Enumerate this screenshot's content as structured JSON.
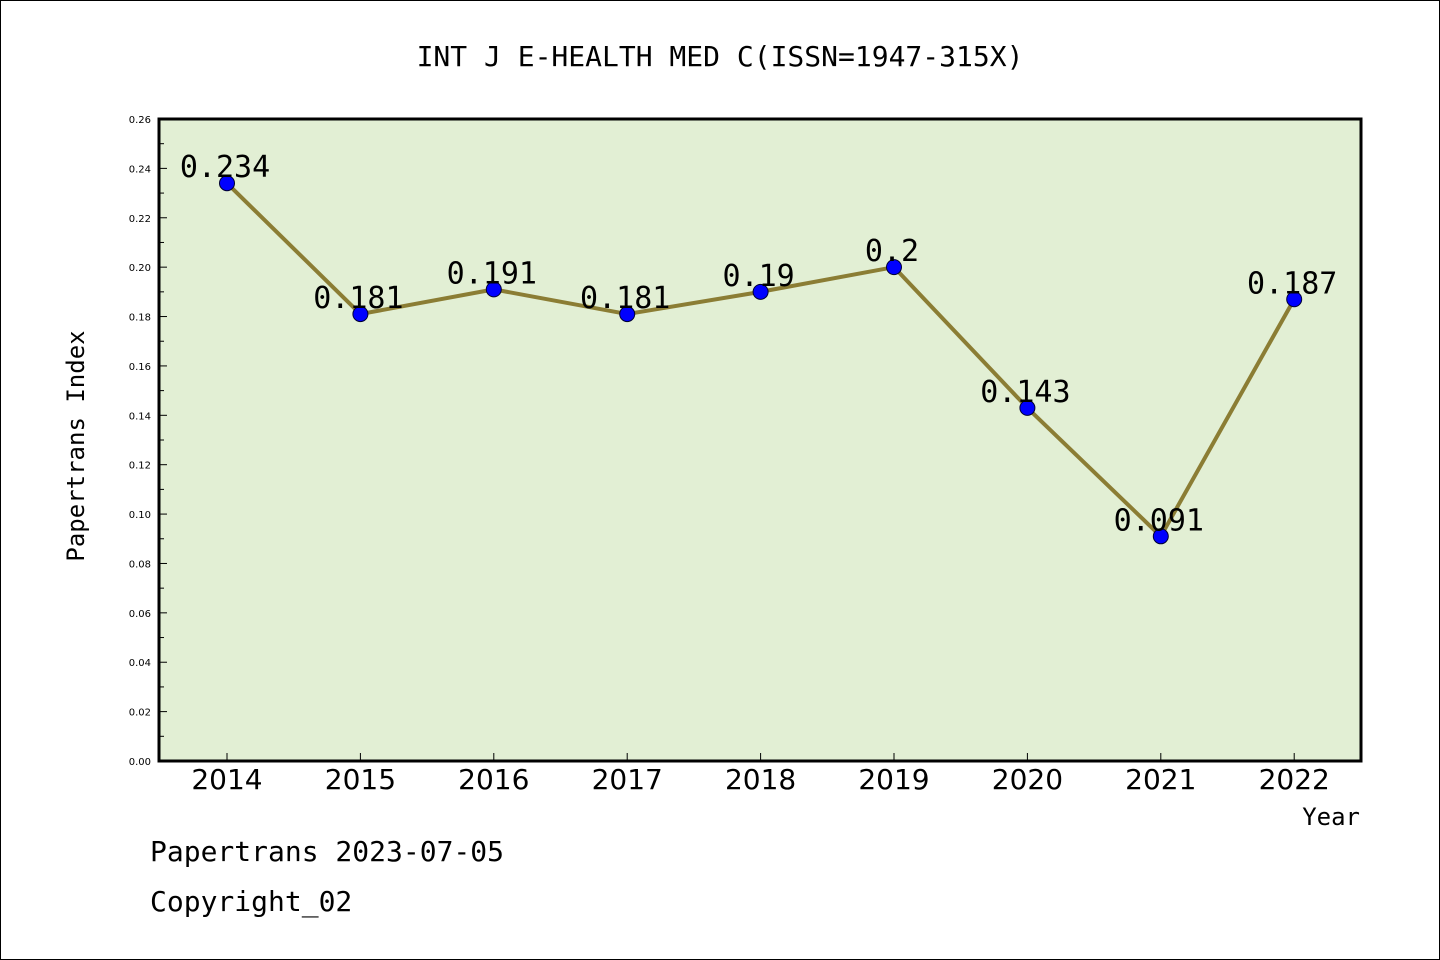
{
  "chart_data": {
    "type": "line",
    "title": "INT J E-HEALTH MED C(ISSN=1947-315X)",
    "xlabel": "Year",
    "ylabel": "Papertrans Index",
    "categories": [
      "2014",
      "2015",
      "2016",
      "2017",
      "2018",
      "2019",
      "2020",
      "2021",
      "2022"
    ],
    "values": [
      0.234,
      0.181,
      0.191,
      0.181,
      0.19,
      0.2,
      0.143,
      0.091,
      0.187
    ],
    "data_labels": [
      "0.234",
      "0.181",
      "0.191",
      "0.181",
      "0.19",
      "0.2",
      "0.143",
      "0.091",
      "0.187"
    ],
    "ylim": [
      0,
      0.26
    ],
    "yticks": [
      "0.00",
      "0.02",
      "0.04",
      "0.06",
      "0.08",
      "0.10",
      "0.12",
      "0.14",
      "0.16",
      "0.18",
      "0.20",
      "0.22",
      "0.24",
      "0.26"
    ],
    "grid": false,
    "colors": {
      "plot_background": "#e2efd4",
      "line": "#8b7d34",
      "marker": "#0000ff"
    }
  },
  "footer": {
    "date_text": "Papertrans 2023-07-05",
    "copyright_text": "Copyright_02"
  }
}
